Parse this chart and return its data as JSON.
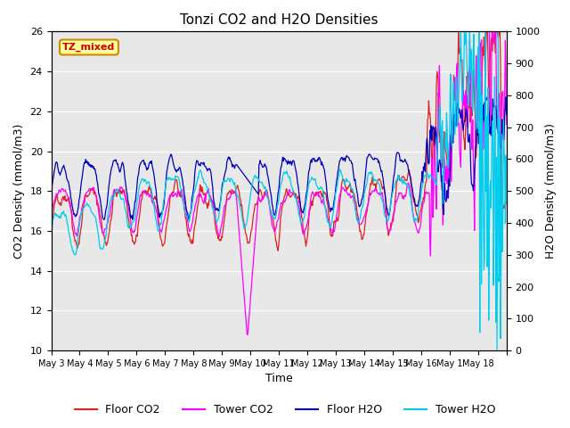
{
  "title": "Tonzi CO2 and H2O Densities",
  "xlabel": "Time",
  "ylabel_left": "CO2 Density (mmol/m3)",
  "ylabel_right": "H2O Density (mmol/m3)",
  "annotation": "TZ_mixed",
  "annotation_color": "#cc0000",
  "annotation_bg": "#ffff99",
  "annotation_border": "#cc8800",
  "ylim_left": [
    10,
    26
  ],
  "ylim_right": [
    0,
    1000
  ],
  "yticks_left": [
    10,
    12,
    14,
    16,
    18,
    20,
    22,
    24,
    26
  ],
  "yticks_right": [
    0,
    100,
    200,
    300,
    400,
    500,
    600,
    700,
    800,
    900,
    1000
  ],
  "n_days": 16,
  "colors": {
    "floor_co2": "#dd2222",
    "tower_co2": "#ff00ff",
    "floor_h2o": "#0000bb",
    "tower_h2o": "#00ccee"
  },
  "background_color": "#e8e8e8",
  "grid_color": "#ffffff",
  "seed": 42,
  "figsize": [
    6.4,
    4.8
  ],
  "dpi": 100
}
